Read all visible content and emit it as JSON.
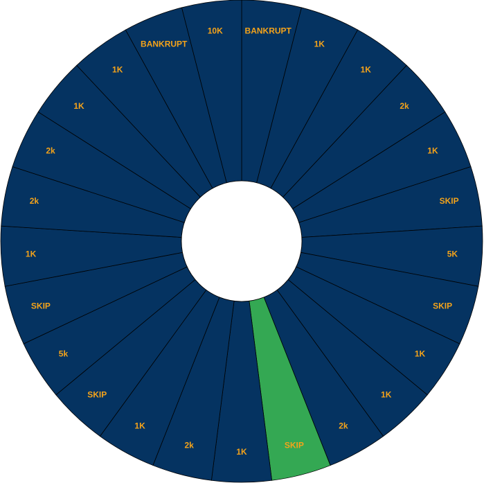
{
  "wheel": {
    "segments": [
      {
        "label": "BANKRUPT",
        "selected": false
      },
      {
        "label": "1K",
        "selected": false
      },
      {
        "label": "1K",
        "selected": false
      },
      {
        "label": "2k",
        "selected": false
      },
      {
        "label": "1K",
        "selected": false
      },
      {
        "label": "SKIP",
        "selected": false
      },
      {
        "label": "5K",
        "selected": false
      },
      {
        "label": "SKIP",
        "selected": false
      },
      {
        "label": "1K",
        "selected": false
      },
      {
        "label": "1K",
        "selected": false
      },
      {
        "label": "2k",
        "selected": false
      },
      {
        "label": "SKIP",
        "selected": true
      },
      {
        "label": "1K",
        "selected": false
      },
      {
        "label": "2k",
        "selected": false
      },
      {
        "label": "1K",
        "selected": false
      },
      {
        "label": "SKIP",
        "selected": false
      },
      {
        "label": "5k",
        "selected": false
      },
      {
        "label": "SKIP",
        "selected": false
      },
      {
        "label": "1K",
        "selected": false
      },
      {
        "label": "2k",
        "selected": false
      },
      {
        "label": "2k",
        "selected": false
      },
      {
        "label": "1K",
        "selected": false
      },
      {
        "label": "1K",
        "selected": false
      },
      {
        "label": "BANKRUPT",
        "selected": false
      },
      {
        "label": "10K",
        "selected": false
      }
    ]
  },
  "colors": {
    "segment_fill": "#053361",
    "selected_fill": "#34a853",
    "label_color": "#f4a31a",
    "border": "#000000",
    "hub_fill": "#ffffff"
  }
}
